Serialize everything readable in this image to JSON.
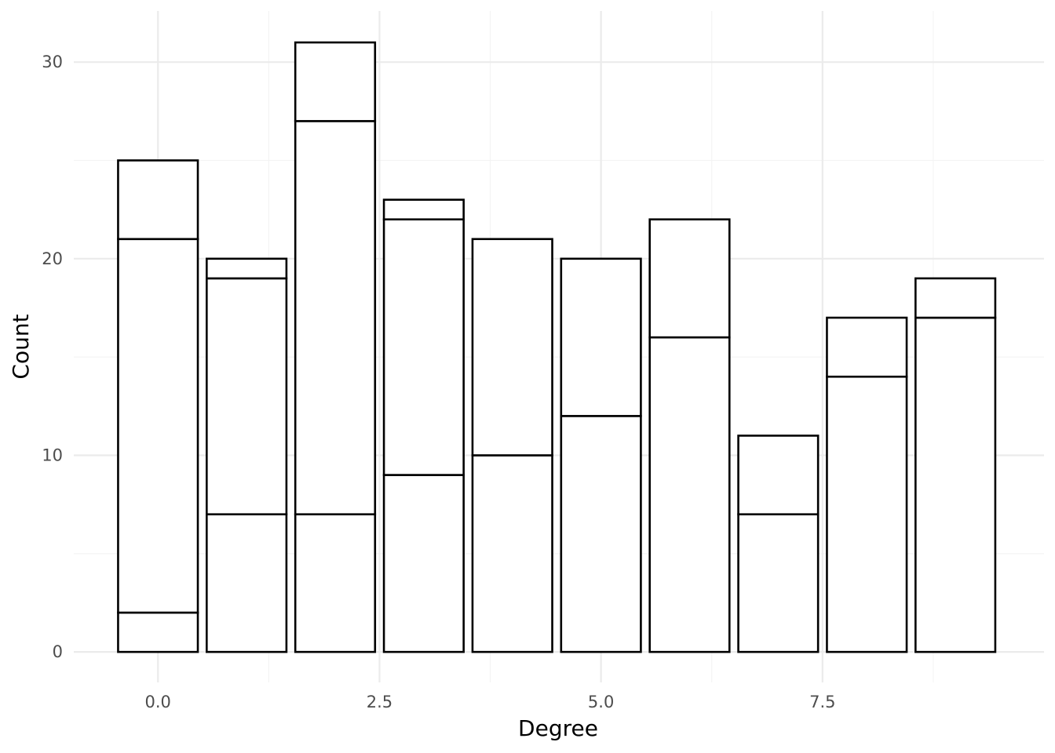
{
  "chart_data": {
    "type": "bar",
    "stacked": true,
    "xlabel": "Degree",
    "ylabel": "Count",
    "x": [
      0,
      1,
      2,
      3,
      4,
      5,
      6,
      7,
      8,
      9
    ],
    "segment_boundaries": [
      [
        2,
        21,
        25
      ],
      [
        7,
        19,
        20
      ],
      [
        7,
        27,
        31
      ],
      [
        9,
        22,
        23
      ],
      [
        10,
        21
      ],
      [
        12,
        20
      ],
      [
        16,
        22
      ],
      [
        7,
        11
      ],
      [
        14,
        17
      ],
      [
        17,
        19
      ]
    ],
    "totals": [
      25,
      20,
      31,
      23,
      21,
      20,
      22,
      11,
      17,
      19
    ],
    "xlim": [
      -0.95,
      10
    ],
    "ylim": [
      -1.55,
      32.6
    ],
    "x_ticks": [
      0.0,
      2.5,
      5.0,
      7.5
    ],
    "x_tick_labels": [
      "0.0",
      "2.5",
      "5.0",
      "7.5"
    ],
    "y_ticks": [
      0,
      10,
      20,
      30
    ],
    "y_tick_labels": [
      "0",
      "10",
      "20",
      "30"
    ],
    "grid": true,
    "legend": "none",
    "bar_fill": "#ffffff",
    "bar_stroke": "#000000",
    "bar_width": 0.9
  }
}
